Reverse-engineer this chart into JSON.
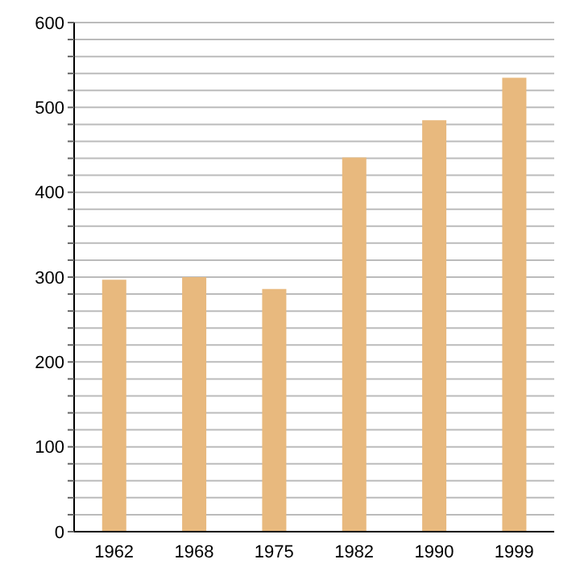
{
  "chart_data": {
    "type": "bar",
    "categories": [
      "1962",
      "1968",
      "1975",
      "1982",
      "1990",
      "1999"
    ],
    "values": [
      297,
      300,
      286,
      441,
      485,
      535
    ],
    "color": "#e8b97e",
    "ylim": [
      0,
      600
    ],
    "yticks": [
      0,
      {
        "value": 20,
        "label": null
      },
      {
        "value": 40,
        "label": null
      },
      {
        "value": 60,
        "label": null
      },
      {
        "value": 80,
        "label": null
      },
      100,
      {
        "value": 120,
        "label": null
      },
      {
        "value": 140,
        "label": null
      },
      {
        "value": 160,
        "label": null
      },
      {
        "value": 180,
        "label": null
      },
      200,
      {
        "value": 220,
        "label": null
      },
      {
        "value": 240,
        "label": null
      },
      {
        "value": 260,
        "label": null
      },
      {
        "value": 280,
        "label": null
      },
      300,
      {
        "value": 320,
        "label": null
      },
      {
        "value": 340,
        "label": null
      },
      {
        "value": 360,
        "label": null
      },
      {
        "value": 380,
        "label": null
      },
      400,
      {
        "value": 420,
        "label": null
      },
      {
        "value": 440,
        "label": null
      },
      {
        "value": 460,
        "label": null
      },
      {
        "value": 480,
        "label": null
      },
      500,
      {
        "value": 520,
        "label": null
      },
      {
        "value": 540,
        "label": null
      },
      {
        "value": 560,
        "label": null
      },
      {
        "value": 580,
        "label": null
      },
      600
    ],
    "grid": "y"
  }
}
